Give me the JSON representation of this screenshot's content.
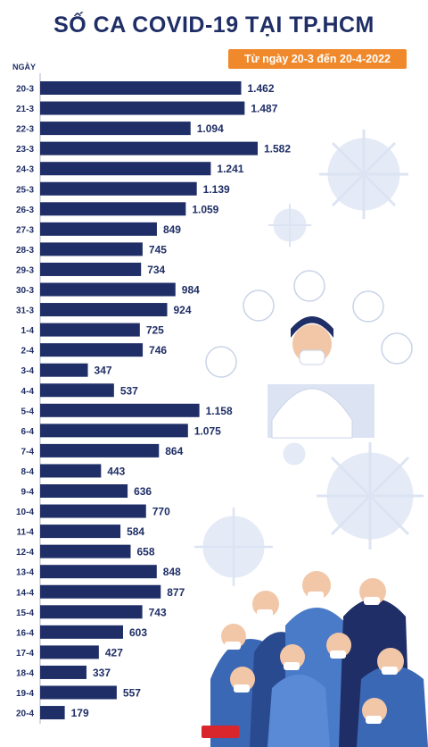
{
  "title": "SỐ CA COVID-19 TẠI TP.HCM",
  "subtitle": "Từ ngày 20-3 đến 20-4-2022",
  "colors": {
    "bar": "#1f2e66",
    "accent": "#f0892b",
    "virus": "#dbe3f2"
  },
  "chart_data": {
    "type": "bar",
    "orientation": "horizontal",
    "ylabel": "NGÀY",
    "xlabel": "",
    "categories": [
      "20-3",
      "21-3",
      "22-3",
      "23-3",
      "24-3",
      "25-3",
      "26-3",
      "27-3",
      "28-3",
      "29-3",
      "30-3",
      "31-3",
      "1-4",
      "2-4",
      "3-4",
      "4-4",
      "5-4",
      "6-4",
      "7-4",
      "8-4",
      "9-4",
      "10-4",
      "11-4",
      "12-4",
      "13-4",
      "14-4",
      "15-4",
      "16-4",
      "17-4",
      "18-4",
      "19-4",
      "20-4"
    ],
    "values": [
      1462,
      1487,
      1094,
      1582,
      1241,
      1139,
      1059,
      849,
      745,
      734,
      984,
      924,
      725,
      746,
      347,
      537,
      1158,
      1075,
      864,
      443,
      636,
      770,
      584,
      658,
      848,
      877,
      743,
      603,
      427,
      337,
      557,
      179
    ],
    "value_labels": [
      "1.462",
      "1.487",
      "1.094",
      "1.582",
      "1.241",
      "1.139",
      "1.059",
      "849",
      "745",
      "734",
      "984",
      "924",
      "725",
      "746",
      "347",
      "537",
      "1.158",
      "1.075",
      "864",
      "443",
      "636",
      "770",
      "584",
      "658",
      "848",
      "877",
      "743",
      "603",
      "427",
      "337",
      "557",
      "179"
    ],
    "grid": false
  }
}
